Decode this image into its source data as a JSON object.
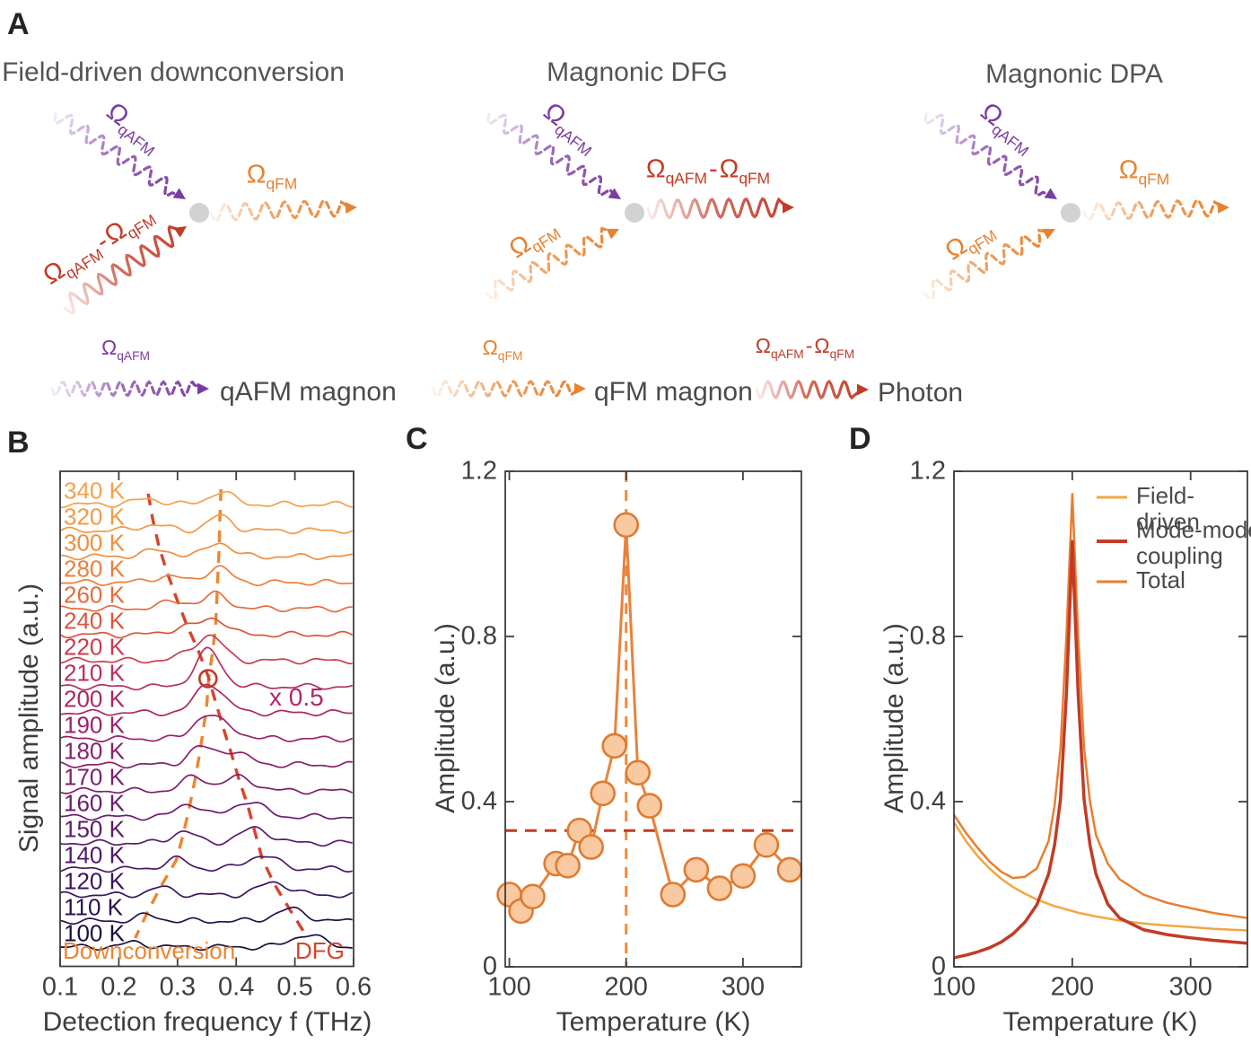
{
  "colors": {
    "qafm_purple": "#7B3CA2",
    "qfm_orange": "#E8822F",
    "photon_red": "#C33B26",
    "interaction_dot": "#D2D2D2",
    "axis_frame": "#3F3F3F",
    "text_gray": "#4a4a4a",
    "downconversion_dash": "#EE8530",
    "dfg_dash": "#D8432A",
    "scale_note_color": "#B3266A",
    "circle_annotation": "#C0392B"
  },
  "wave_styles": {
    "qafm": {
      "color": "#7B3CA2",
      "dashed": true
    },
    "qfm": {
      "color": "#E8822F",
      "dashed": true
    },
    "photon": {
      "color": "#C33B26",
      "dashed": false
    }
  },
  "panels": {
    "a": {
      "letter": "A",
      "diagrams": [
        {
          "title": "Field-driven downconversion",
          "inputs": [
            {
              "wave": "qafm",
              "label": [
                [
                  "Ω",
                  "qAFM"
                ]
              ]
            },
            {
              "wave": "photon",
              "label": [
                [
                  "Ω",
                  "qAFM"
                ],
                "-",
                [
                  "Ω",
                  "qFM"
                ]
              ]
            }
          ],
          "output": {
            "wave": "qfm",
            "label": [
              [
                "Ω",
                "qFM"
              ]
            ]
          }
        },
        {
          "title": "Magnonic DFG",
          "inputs": [
            {
              "wave": "qafm",
              "label": [
                [
                  "Ω",
                  "qAFM"
                ]
              ]
            },
            {
              "wave": "qfm",
              "label": [
                [
                  "Ω",
                  "qFM"
                ]
              ]
            }
          ],
          "output": {
            "wave": "photon",
            "label": [
              [
                "Ω",
                "qAFM"
              ],
              "-",
              [
                "Ω",
                "qFM"
              ]
            ]
          }
        },
        {
          "title": "Magnonic DPA",
          "inputs": [
            {
              "wave": "qafm",
              "label": [
                [
                  "Ω",
                  "qAFM"
                ]
              ]
            },
            {
              "wave": "qfm",
              "label": [
                [
                  "Ω",
                  "qFM"
                ]
              ]
            }
          ],
          "output": {
            "wave": "qfm",
            "label": [
              [
                "Ω",
                "qFM"
              ]
            ]
          }
        }
      ],
      "legend": [
        {
          "wave": "qafm",
          "label": [
            [
              "Ω",
              "qAFM"
            ]
          ],
          "name": "qAFM magnon"
        },
        {
          "wave": "qfm",
          "label": [
            [
              "Ω",
              "qFM"
            ]
          ],
          "name": "qFM magnon"
        },
        {
          "wave": "photon",
          "label": [
            [
              "Ω",
              "qAFM"
            ],
            "-",
            [
              "Ω",
              "qFM"
            ]
          ],
          "name": "Photon"
        }
      ]
    },
    "b": {
      "letter": "B"
    },
    "c": {
      "letter": "C"
    },
    "d": {
      "letter": "D"
    }
  },
  "chart_data": [
    {
      "id": "B",
      "type": "line",
      "variant": "waterfall",
      "xlabel": "Detection frequency f (THz)",
      "ylabel": "Signal amplitude (a.u.)",
      "x_ticks": [
        0.1,
        0.2,
        0.3,
        0.4,
        0.5,
        0.6
      ],
      "xlim": [
        0.1,
        0.6
      ],
      "grid": false,
      "series": [
        {
          "t": "340 K",
          "color": "#F5A04B",
          "dc_f": 0.374,
          "dc_a": 0.5,
          "dfg_f": 0.25,
          "dfg_a": 0.2
        },
        {
          "t": "320 K",
          "color": "#F49943",
          "dc_f": 0.372,
          "dc_a": 0.55,
          "dfg_f": 0.258,
          "dfg_a": 0.21
        },
        {
          "t": "300 K",
          "color": "#F18D3D",
          "dc_f": 0.371,
          "dc_a": 0.55,
          "dfg_f": 0.268,
          "dfg_a": 0.24
        },
        {
          "t": "280 K",
          "color": "#EE7E3A",
          "dc_f": 0.369,
          "dc_a": 0.59,
          "dfg_f": 0.282,
          "dfg_a": 0.24
        },
        {
          "t": "260 K",
          "color": "#E66B3C",
          "dc_f": 0.367,
          "dc_a": 0.55,
          "dfg_f": 0.298,
          "dfg_a": 0.28
        },
        {
          "t": "240 K",
          "color": "#DC543C",
          "dc_f": 0.365,
          "dc_a": 0.59,
          "dfg_f": 0.315,
          "dfg_a": 0.31
        },
        {
          "t": "220 K",
          "color": "#C93D4F",
          "dc_f": 0.36,
          "dc_a": 0.69,
          "dfg_f": 0.335,
          "dfg_a": 0.41
        },
        {
          "t": "210 K",
          "color": "#B72F5C",
          "dc_f": 0.353,
          "dc_a": 0.93,
          "dfg_f": 0.352,
          "dfg_a": 0.48
        },
        {
          "t": "200 K",
          "color": "#A92865",
          "dc_f": 0.35,
          "dc_a": 0.76,
          "dfg_f": 0.365,
          "dfg_a": 0.45
        },
        {
          "t": "190 K",
          "color": "#9A226B",
          "dc_f": 0.344,
          "dc_a": 0.69,
          "dfg_f": 0.378,
          "dfg_a": 0.48
        },
        {
          "t": "180 K",
          "color": "#8B206E",
          "dc_f": 0.337,
          "dc_a": 0.62,
          "dfg_f": 0.392,
          "dfg_a": 0.52
        },
        {
          "t": "170 K",
          "color": "#7B1F70",
          "dc_f": 0.329,
          "dc_a": 0.55,
          "dfg_f": 0.405,
          "dfg_a": 0.52
        },
        {
          "t": "160 K",
          "color": "#6B1D70",
          "dc_f": 0.32,
          "dc_a": 0.52,
          "dfg_f": 0.42,
          "dfg_a": 0.59
        },
        {
          "t": "150 K",
          "color": "#5C1B6D",
          "dc_f": 0.31,
          "dc_a": 0.45,
          "dfg_f": 0.432,
          "dfg_a": 0.55
        },
        {
          "t": "140 K",
          "color": "#4C1966",
          "dc_f": 0.298,
          "dc_a": 0.38,
          "dfg_f": 0.444,
          "dfg_a": 0.52
        },
        {
          "t": "120 K",
          "color": "#3A155C",
          "dc_f": 0.272,
          "dc_a": 0.28,
          "dfg_f": 0.465,
          "dfg_a": 0.48
        },
        {
          "t": "110 K",
          "color": "#2A124E",
          "dc_f": 0.249,
          "dc_a": 0.21,
          "dfg_f": 0.492,
          "dfg_a": 0.45
        },
        {
          "t": "100 K",
          "color": "#1B0F3E",
          "dc_f": 0.228,
          "dc_a": 0.17,
          "dfg_f": 0.52,
          "dfg_a": 0.48
        }
      ],
      "trend_lines": [
        {
          "name": "Downconversion",
          "color": "#EE8530"
        },
        {
          "name": "DFG",
          "color": "#D8432A"
        }
      ],
      "annotations": {
        "downconversion": "Downconversion",
        "dfg": "DFG",
        "scale_note": "x 0.5",
        "circled_trace": "210 K",
        "circle_f_THz": 0.352
      }
    },
    {
      "id": "C",
      "type": "scatter",
      "xlabel": "Temperature (K)",
      "ylabel": "Amplitude (a.u.)",
      "x_ticks": [
        100,
        200,
        300
      ],
      "y_ticks": [
        0,
        0.4,
        0.8,
        1.2
      ],
      "xlim": [
        96.5,
        350
      ],
      "ylim": [
        0,
        1.2
      ],
      "grid": false,
      "x": [
        100,
        110,
        120,
        140,
        150,
        160,
        170,
        180,
        190,
        200,
        210,
        220,
        240,
        260,
        280,
        300,
        320,
        340
      ],
      "y": [
        0.175,
        0.135,
        0.17,
        0.25,
        0.245,
        0.33,
        0.29,
        0.42,
        0.535,
        1.07,
        0.47,
        0.39,
        0.175,
        0.235,
        0.19,
        0.22,
        0.295,
        0.235
      ],
      "vline_x": 200,
      "hline_y": 0.33,
      "marker": {
        "radius": 13,
        "fill": "#F9C9A2",
        "stroke": "#DE7B31"
      },
      "line_color": "#E8823C"
    },
    {
      "id": "D",
      "type": "line",
      "xlabel": "Temperature (K)",
      "ylabel": "Amplitude (a.u.)",
      "x_ticks": [
        100,
        200,
        300
      ],
      "y_ticks": [
        0,
        0.4,
        0.8,
        1.2
      ],
      "xlim": [
        100,
        348
      ],
      "ylim": [
        0,
        1.2
      ],
      "grid": false,
      "legend_position": "top-right",
      "x": [
        100,
        110,
        120,
        130,
        140,
        150,
        160,
        170,
        180,
        185,
        190,
        195,
        200,
        205,
        210,
        215,
        220,
        230,
        240,
        260,
        280,
        300,
        320,
        348
      ],
      "series": [
        {
          "name": "Field-driven",
          "color": "#F2A640",
          "width": 2.5,
          "values": [
            0.35,
            0.305,
            0.268,
            0.238,
            0.213,
            0.193,
            0.177,
            0.163,
            0.152,
            0.147,
            0.143,
            0.139,
            0.135,
            0.131,
            0.128,
            0.125,
            0.122,
            0.117,
            0.112,
            0.105,
            0.1,
            0.096,
            0.092,
            0.088
          ]
        },
        {
          "name": "Mode-mode coupling",
          "color": "#C23B26",
          "width": 3.5,
          "values": [
            0.022,
            0.028,
            0.036,
            0.046,
            0.06,
            0.08,
            0.108,
            0.15,
            0.225,
            0.295,
            0.405,
            0.66,
            1.03,
            0.66,
            0.405,
            0.295,
            0.225,
            0.152,
            0.118,
            0.09,
            0.078,
            0.07,
            0.064,
            0.057
          ]
        },
        {
          "name": "Total",
          "color": "#E87E2F",
          "width": 2.5,
          "values": [
            0.368,
            0.325,
            0.288,
            0.255,
            0.23,
            0.215,
            0.218,
            0.238,
            0.305,
            0.39,
            0.53,
            0.8,
            1.145,
            0.8,
            0.53,
            0.4,
            0.32,
            0.25,
            0.212,
            0.175,
            0.155,
            0.142,
            0.13,
            0.118
          ]
        }
      ]
    }
  ]
}
